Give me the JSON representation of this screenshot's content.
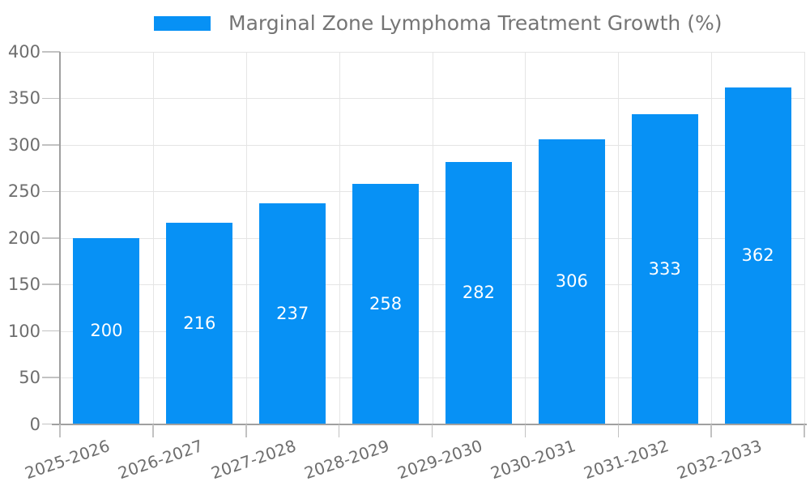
{
  "chart_data": {
    "type": "bar",
    "title": "Marginal Zone Lymphoma Treatment Growth (%)",
    "legend_position": "top",
    "categories": [
      "2025-2026",
      "2026-2027",
      "2027-2028",
      "2028-2029",
      "2029-2030",
      "2030-2031",
      "2031-2032",
      "2032-2033"
    ],
    "series": [
      {
        "name": "Marginal Zone Lymphoma Treatment Growth (%)",
        "values": [
          200,
          216,
          237,
          258,
          282,
          306,
          333,
          362
        ]
      }
    ],
    "bar_value_labels": [
      "200",
      "216",
      "237",
      "258",
      "282",
      "306",
      "333",
      "362"
    ],
    "xlabel": "",
    "ylabel": "",
    "ylim": [
      0,
      400
    ],
    "yticks": [
      0,
      50,
      100,
      150,
      200,
      250,
      300,
      350,
      400
    ],
    "ytick_labels": [
      "0",
      "50",
      "100",
      "150",
      "200",
      "250",
      "300",
      "350",
      "400"
    ],
    "grid": true,
    "xtick_rotation_deg": 19
  },
  "style": {
    "bar_color": "#0791f5",
    "bar_label_color": "#ffffff",
    "axis_text_color": "#6e6e6e",
    "title_color": "#757575",
    "grid_color": "#e5e5e5",
    "axis_line_color": "#a0a0a0",
    "tick_color": "#c2c2c2",
    "background_color": "#ffffff"
  }
}
